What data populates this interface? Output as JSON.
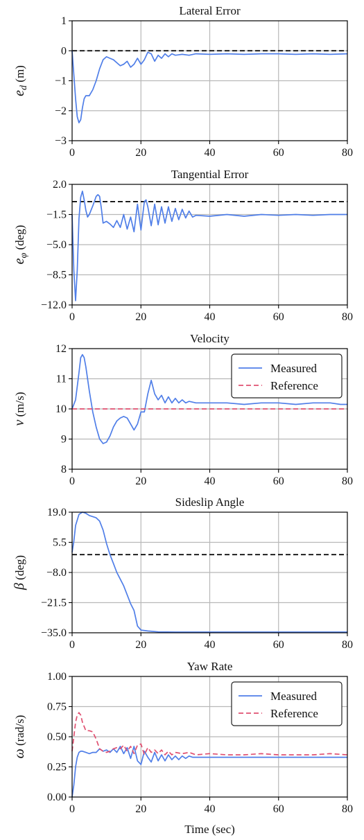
{
  "colors": {
    "measured": "#4f7ee8",
    "reference": "#e05070",
    "dashed_ref": "#000000",
    "grid": "#b8b8b8"
  },
  "chart_data": [
    {
      "type": "line",
      "title": "Lateral Error",
      "ylabel": "e_d (m)",
      "ylabel_sym": "e",
      "ylabel_sub": "d",
      "ylabel_rest": " (m)",
      "xlabel": "",
      "xlim": [
        0,
        80
      ],
      "ylim": [
        -3,
        1
      ],
      "xticks": [
        0,
        20,
        40,
        60,
        80
      ],
      "yticks": [
        1,
        0,
        -1,
        -2,
        -3
      ],
      "ytick_labels": [
        "1",
        "0",
        "−1",
        "−2",
        "−3"
      ],
      "grid": true,
      "reference_line": 0,
      "legend": null,
      "series": [
        {
          "role": "measured",
          "x": [
            0,
            0.5,
            1,
            1.5,
            2,
            2.5,
            3,
            3.5,
            4,
            5,
            6,
            7,
            8,
            9,
            10,
            11,
            12,
            13,
            14,
            15,
            16,
            17,
            18,
            19,
            20,
            21,
            22,
            23,
            24,
            25,
            26,
            27,
            28,
            29,
            30,
            32,
            34,
            36,
            40,
            45,
            50,
            55,
            60,
            65,
            70,
            75,
            80
          ],
          "y": [
            0,
            -0.8,
            -1.6,
            -2.2,
            -2.4,
            -2.3,
            -1.9,
            -1.6,
            -1.5,
            -1.5,
            -1.3,
            -1.0,
            -0.6,
            -0.3,
            -0.2,
            -0.25,
            -0.3,
            -0.4,
            -0.5,
            -0.45,
            -0.35,
            -0.55,
            -0.45,
            -0.25,
            -0.45,
            -0.3,
            -0.05,
            -0.1,
            -0.35,
            -0.15,
            -0.25,
            -0.1,
            -0.2,
            -0.1,
            -0.15,
            -0.12,
            -0.15,
            -0.1,
            -0.12,
            -0.1,
            -0.12,
            -0.1,
            -0.1,
            -0.12,
            -0.1,
            -0.12,
            -0.1
          ]
        }
      ]
    },
    {
      "type": "line",
      "title": "Tangential Error",
      "ylabel": "e_φ (deg)",
      "ylabel_sym": "e",
      "ylabel_sub": "φ",
      "ylabel_rest": " (deg)",
      "xlabel": "",
      "xlim": [
        0,
        80
      ],
      "ylim": [
        -12,
        2
      ],
      "xticks": [
        0,
        20,
        40,
        60,
        80
      ],
      "yticks": [
        2,
        -1.5,
        -5,
        -8.5,
        -12
      ],
      "ytick_labels": [
        "2.0",
        "−1.5",
        "−5.0",
        "−8.5",
        "−12.0"
      ],
      "grid": true,
      "reference_line": 0,
      "legend": null,
      "series": [
        {
          "role": "measured",
          "x": [
            0,
            0.5,
            1,
            1.5,
            2,
            2.5,
            3,
            3.5,
            4,
            4.5,
            5,
            6,
            7,
            7.5,
            8,
            8.5,
            9,
            10,
            11,
            12,
            13,
            14,
            15,
            16,
            17,
            18,
            19,
            20,
            21,
            21.5,
            22,
            23,
            24,
            25,
            26,
            27,
            28,
            29,
            30,
            31,
            32,
            33,
            34,
            35,
            36,
            40,
            45,
            50,
            55,
            60,
            65,
            70,
            75,
            80
          ],
          "y": [
            -1.5,
            -8,
            -11.5,
            -8,
            -2,
            0.5,
            1.2,
            0.2,
            -1,
            -1.8,
            -1.5,
            -0.5,
            0.6,
            0.8,
            0.6,
            -0.8,
            -2.5,
            -2.3,
            -2.6,
            -3,
            -2.2,
            -3,
            -1.5,
            -3.2,
            -1.8,
            -3.5,
            -0.3,
            -3.3,
            0,
            0.2,
            -0.6,
            -2.8,
            -0.3,
            -2.7,
            -0.6,
            -2.5,
            -0.6,
            -2.3,
            -0.8,
            -2.1,
            -0.9,
            -1.9,
            -1.1,
            -1.8,
            -1.6,
            -1.7,
            -1.5,
            -1.7,
            -1.5,
            -1.6,
            -1.5,
            -1.6,
            -1.5,
            -1.5
          ]
        }
      ]
    },
    {
      "type": "line",
      "title": "Velocity",
      "ylabel": "v (m/s)",
      "ylabel_sym": "v",
      "ylabel_sub": "",
      "ylabel_rest": " (m/s)",
      "xlabel": "",
      "xlim": [
        0,
        80
      ],
      "ylim": [
        8,
        12
      ],
      "xticks": [
        0,
        20,
        40,
        60,
        80
      ],
      "yticks": [
        12,
        11,
        10,
        9,
        8
      ],
      "ytick_labels": [
        "12",
        "11",
        "10",
        "9",
        "8"
      ],
      "grid": true,
      "reference_line": null,
      "legend": {
        "position": "top-right",
        "entries": [
          "Measured",
          "Reference"
        ]
      },
      "series": [
        {
          "role": "measured",
          "name": "Measured",
          "x": [
            0,
            1,
            2,
            2.5,
            3,
            3.5,
            4,
            5,
            6,
            7,
            8,
            9,
            10,
            11,
            12,
            13,
            14,
            15,
            16,
            17,
            18,
            19,
            20,
            21,
            22,
            23,
            24,
            25,
            26,
            27,
            28,
            29,
            30,
            31,
            32,
            33,
            34,
            36,
            40,
            45,
            50,
            55,
            60,
            65,
            70,
            75,
            78,
            80
          ],
          "y": [
            10,
            10.3,
            11.2,
            11.7,
            11.8,
            11.7,
            11.4,
            10.6,
            9.9,
            9.4,
            9.0,
            8.85,
            8.9,
            9.1,
            9.4,
            9.6,
            9.7,
            9.75,
            9.7,
            9.5,
            9.3,
            9.5,
            9.9,
            9.9,
            10.5,
            10.95,
            10.5,
            10.3,
            10.45,
            10.2,
            10.4,
            10.2,
            10.35,
            10.2,
            10.3,
            10.2,
            10.25,
            10.2,
            10.2,
            10.2,
            10.15,
            10.2,
            10.2,
            10.15,
            10.2,
            10.2,
            10.15,
            10.15
          ]
        },
        {
          "role": "reference",
          "name": "Reference",
          "x": [
            0,
            80
          ],
          "y": [
            10,
            10
          ]
        }
      ]
    },
    {
      "type": "line",
      "title": "Sideslip Angle",
      "ylabel": "β (deg)",
      "ylabel_sym": "β",
      "ylabel_sub": "",
      "ylabel_rest": " (deg)",
      "xlabel": "",
      "xlim": [
        0,
        80
      ],
      "ylim": [
        -35,
        19
      ],
      "xticks": [
        0,
        20,
        40,
        60,
        80
      ],
      "yticks": [
        19,
        5.5,
        -8,
        -21.5,
        -35
      ],
      "ytick_labels": [
        "19.0",
        "5.5",
        "−8.0",
        "−21.5",
        "−35.0"
      ],
      "grid": true,
      "reference_line": 0,
      "legend": null,
      "series": [
        {
          "role": "measured",
          "x": [
            0,
            0.5,
            1,
            2,
            3,
            4,
            5,
            6,
            7,
            8,
            9,
            10,
            11,
            12,
            13,
            14,
            15,
            16,
            17,
            18,
            19,
            20,
            22,
            25,
            30,
            40,
            50,
            60,
            70,
            80
          ],
          "y": [
            1,
            6,
            13,
            18,
            19,
            18.5,
            17.5,
            17,
            16.5,
            15,
            11,
            5,
            0,
            -4,
            -8,
            -11,
            -14,
            -18,
            -22,
            -25,
            -32,
            -33.8,
            -34.2,
            -34.6,
            -34.7,
            -34.7,
            -34.7,
            -34.7,
            -34.7,
            -34.7
          ]
        }
      ]
    },
    {
      "type": "line",
      "title": "Yaw Rate",
      "ylabel": "ω (rad/s)",
      "ylabel_sym": "ω",
      "ylabel_sub": "",
      "ylabel_rest": " (rad/s)",
      "xlabel": "Time (sec)",
      "xlim": [
        0,
        80
      ],
      "ylim": [
        0,
        1
      ],
      "xticks": [
        0,
        20,
        40,
        60,
        80
      ],
      "yticks": [
        1,
        0.75,
        0.5,
        0.25,
        0
      ],
      "ytick_labels": [
        "1.00",
        "0.75",
        "0.50",
        "0.25",
        "0.00"
      ],
      "grid": true,
      "reference_line": null,
      "legend": {
        "position": "top-right",
        "entries": [
          "Measured",
          "Reference"
        ]
      },
      "series": [
        {
          "role": "measured",
          "name": "Measured",
          "x": [
            0,
            0.5,
            1,
            1.5,
            2,
            2.5,
            3,
            4,
            5,
            6,
            7,
            8,
            9,
            10,
            11,
            12,
            13,
            14,
            15,
            16,
            17,
            18,
            19,
            20,
            21,
            22,
            23,
            24,
            25,
            26,
            27,
            28,
            29,
            30,
            31,
            32,
            33,
            34,
            35,
            36,
            40,
            45,
            50,
            55,
            60,
            65,
            70,
            75,
            80
          ],
          "y": [
            0,
            0.1,
            0.25,
            0.33,
            0.37,
            0.38,
            0.38,
            0.37,
            0.36,
            0.37,
            0.37,
            0.4,
            0.38,
            0.39,
            0.37,
            0.4,
            0.37,
            0.42,
            0.36,
            0.41,
            0.32,
            0.42,
            0.3,
            0.27,
            0.38,
            0.33,
            0.29,
            0.37,
            0.3,
            0.35,
            0.3,
            0.35,
            0.31,
            0.34,
            0.31,
            0.34,
            0.32,
            0.34,
            0.33,
            0.33,
            0.33,
            0.33,
            0.33,
            0.33,
            0.33,
            0.33,
            0.33,
            0.33,
            0.33
          ]
        },
        {
          "role": "reference",
          "name": "Reference",
          "x": [
            0,
            0.5,
            1,
            1.5,
            2,
            2.5,
            3,
            4,
            5,
            6,
            7,
            8,
            9,
            10,
            11,
            12,
            13,
            14,
            15,
            16,
            17,
            18,
            19,
            20,
            21,
            22,
            23,
            24,
            25,
            26,
            27,
            28,
            29,
            30,
            32,
            34,
            36,
            40,
            45,
            50,
            55,
            60,
            65,
            70,
            75,
            80
          ],
          "y": [
            0.38,
            0.5,
            0.62,
            0.68,
            0.7,
            0.68,
            0.62,
            0.55,
            0.55,
            0.54,
            0.48,
            0.4,
            0.38,
            0.37,
            0.38,
            0.4,
            0.41,
            0.4,
            0.43,
            0.38,
            0.42,
            0.36,
            0.43,
            0.44,
            0.35,
            0.41,
            0.37,
            0.39,
            0.36,
            0.39,
            0.35,
            0.38,
            0.35,
            0.37,
            0.36,
            0.37,
            0.35,
            0.36,
            0.35,
            0.35,
            0.36,
            0.35,
            0.35,
            0.35,
            0.36,
            0.35
          ]
        }
      ]
    }
  ]
}
